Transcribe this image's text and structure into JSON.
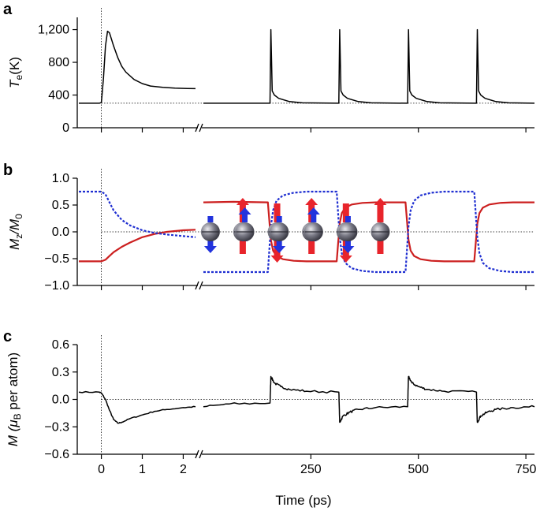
{
  "chart_data": [
    {
      "panel_label": "a",
      "type": "line",
      "ylabel": "T",
      "ylabel_sub": "e",
      "ylabel_unit": "(K)",
      "ylim": [
        0,
        1350
      ],
      "yticks": [
        0,
        400,
        800,
        1200
      ],
      "ytick_labels": [
        "0",
        "400",
        "800",
        "1,200"
      ],
      "reference_lines": {
        "y": 300,
        "x": 0
      },
      "series": [
        {
          "color": "#000000",
          "x": [
            -0.55,
            -0.05,
            0.0,
            0.05,
            0.1,
            0.15,
            0.2,
            0.3,
            0.4,
            0.5,
            0.6,
            0.8,
            1.0,
            1.2,
            1.5,
            1.8,
            2.1,
            2.3
          ],
          "y": [
            300,
            300,
            310,
            600,
            1000,
            1180,
            1160,
            1000,
            860,
            750,
            680,
            590,
            540,
            510,
            495,
            485,
            480,
            478
          ]
        },
        {
          "color": "#000000",
          "x": [
            0,
            155,
            157,
            160,
            165,
            175,
            200,
            230,
            315,
            317,
            320,
            325,
            335,
            360,
            390,
            475,
            477,
            480,
            485,
            495,
            520,
            550,
            635,
            637,
            640,
            645,
            655,
            680,
            710,
            770
          ],
          "y": [
            300,
            300,
            1200,
            450,
            400,
            360,
            320,
            305,
            300,
            1200,
            450,
            400,
            360,
            320,
            305,
            300,
            1200,
            450,
            400,
            360,
            320,
            305,
            300,
            1200,
            450,
            400,
            360,
            320,
            305,
            300
          ]
        }
      ]
    },
    {
      "panel_label": "b",
      "type": "line",
      "ylabel": "M",
      "ylabel_sub": "z",
      "ylabel_mid": "/M",
      "ylabel_sub2": "0",
      "ylim": [
        -1.0,
        1.0
      ],
      "yticks": [
        -1.0,
        -0.5,
        0.0,
        0.5,
        1.0
      ],
      "ytick_labels": [
        "−1.0",
        "−0.5",
        "0.0",
        "0.5",
        "1.0"
      ],
      "reference_lines": {
        "y": 0.0,
        "x": 0
      },
      "series": [
        {
          "color": "#cc1f1f",
          "style": "solid",
          "x": [
            -0.55,
            -0.05,
            0.0,
            0.1,
            0.2,
            0.3,
            0.5,
            0.7,
            1.0,
            1.3,
            1.6,
            2.0,
            2.3
          ],
          "y": [
            -0.55,
            -0.55,
            -0.55,
            -0.52,
            -0.45,
            -0.38,
            -0.28,
            -0.2,
            -0.1,
            -0.04,
            0.0,
            0.03,
            0.04
          ]
        },
        {
          "color": "#1f2fd1",
          "style": "dashed",
          "x": [
            -0.55,
            -0.05,
            0.0,
            0.1,
            0.2,
            0.3,
            0.5,
            0.7,
            1.0,
            1.3,
            1.6,
            2.0,
            2.3
          ],
          "y": [
            0.75,
            0.75,
            0.75,
            0.7,
            0.55,
            0.4,
            0.22,
            0.12,
            0.03,
            -0.02,
            -0.05,
            -0.08,
            -0.1
          ]
        },
        {
          "color": "#cc1f1f",
          "style": "solid",
          "x": [
            0,
            70,
            150,
            157,
            162,
            170,
            185,
            210,
            240,
            310,
            317,
            322,
            330,
            345,
            370,
            400,
            470,
            477,
            482,
            490,
            505,
            530,
            560,
            630,
            637,
            642,
            650,
            665,
            690,
            720,
            770
          ],
          "y": [
            0.55,
            0.56,
            0.55,
            -0.15,
            -0.35,
            -0.45,
            -0.51,
            -0.54,
            -0.55,
            -0.55,
            0.15,
            0.35,
            0.45,
            0.51,
            0.54,
            0.55,
            0.55,
            -0.15,
            -0.35,
            -0.45,
            -0.51,
            -0.54,
            -0.55,
            -0.55,
            0.15,
            0.35,
            0.45,
            0.51,
            0.54,
            0.55,
            0.55
          ]
        },
        {
          "color": "#1f2fd1",
          "style": "dashed",
          "x": [
            0,
            70,
            150,
            157,
            162,
            170,
            185,
            210,
            240,
            310,
            317,
            322,
            330,
            345,
            370,
            400,
            470,
            477,
            482,
            490,
            505,
            530,
            560,
            630,
            637,
            642,
            650,
            665,
            690,
            720,
            770
          ],
          "y": [
            -0.75,
            -0.75,
            -0.75,
            0.1,
            0.4,
            0.58,
            0.68,
            0.73,
            0.75,
            0.75,
            -0.1,
            -0.4,
            -0.58,
            -0.68,
            -0.73,
            -0.75,
            -0.75,
            0.1,
            0.4,
            0.58,
            0.68,
            0.73,
            0.75,
            0.75,
            -0.1,
            -0.4,
            -0.58,
            -0.68,
            -0.73,
            -0.75,
            -0.75
          ]
        }
      ],
      "spin_pairs": [
        {
          "x": 20,
          "left": "blue-down",
          "right": "red-up"
        },
        {
          "x": 100,
          "left": "blue-up",
          "right": "red-down"
        },
        {
          "x": 180,
          "left": "blue-down",
          "right": "red-up"
        },
        {
          "x": 260,
          "left": "blue-up",
          "right": "red-down"
        },
        {
          "x": 340,
          "left": "blue-down",
          "right": "red-up"
        }
      ]
    },
    {
      "panel_label": "c",
      "type": "line",
      "ylabel": "M (μ",
      "ylabel_sub": "B",
      "ylabel_unit": " per atom)",
      "ylim": [
        -0.6,
        0.6
      ],
      "yticks": [
        -0.6,
        -0.3,
        0.0,
        0.3,
        0.6
      ],
      "ytick_labels": [
        "−0.6",
        "−0.3",
        "0.0",
        "0.3",
        "0.6"
      ],
      "reference_lines": {
        "y": 0.0,
        "x": 0
      },
      "series": [
        {
          "color": "#000000",
          "x": [
            -0.55,
            -0.05,
            0.0,
            0.1,
            0.2,
            0.3,
            0.4,
            0.5,
            0.7,
            1.0,
            1.3,
            1.6,
            2.0,
            2.3
          ],
          "y": [
            0.08,
            0.08,
            0.07,
            0.0,
            -0.12,
            -0.22,
            -0.26,
            -0.25,
            -0.21,
            -0.17,
            -0.13,
            -0.11,
            -0.09,
            -0.08
          ],
          "noise": 0.006
        },
        {
          "color": "#000000",
          "x": [
            0,
            60,
            155,
            157,
            165,
            180,
            200,
            240,
            315,
            317,
            325,
            340,
            360,
            400,
            475,
            477,
            485,
            500,
            520,
            560,
            635,
            637,
            645,
            660,
            680,
            720,
            770
          ],
          "y": [
            -0.08,
            -0.05,
            -0.04,
            0.25,
            0.18,
            0.14,
            0.11,
            0.09,
            0.08,
            -0.25,
            -0.18,
            -0.14,
            -0.11,
            -0.09,
            -0.08,
            0.25,
            0.18,
            0.14,
            0.11,
            0.09,
            0.08,
            -0.25,
            -0.18,
            -0.14,
            -0.11,
            -0.09,
            -0.08
          ],
          "noise": 0.012
        }
      ]
    }
  ],
  "x_axis": {
    "title": "Time (ps)",
    "left_ticks": [
      0,
      1,
      2
    ],
    "left_tick_labels": [
      "0",
      "1",
      "2"
    ],
    "right_ticks": [
      250,
      500,
      750
    ],
    "right_tick_labels": [
      "250",
      "500",
      "750"
    ],
    "left_range": [
      -0.55,
      2.3
    ],
    "right_range": [
      0,
      770
    ],
    "break_marker": "//"
  }
}
